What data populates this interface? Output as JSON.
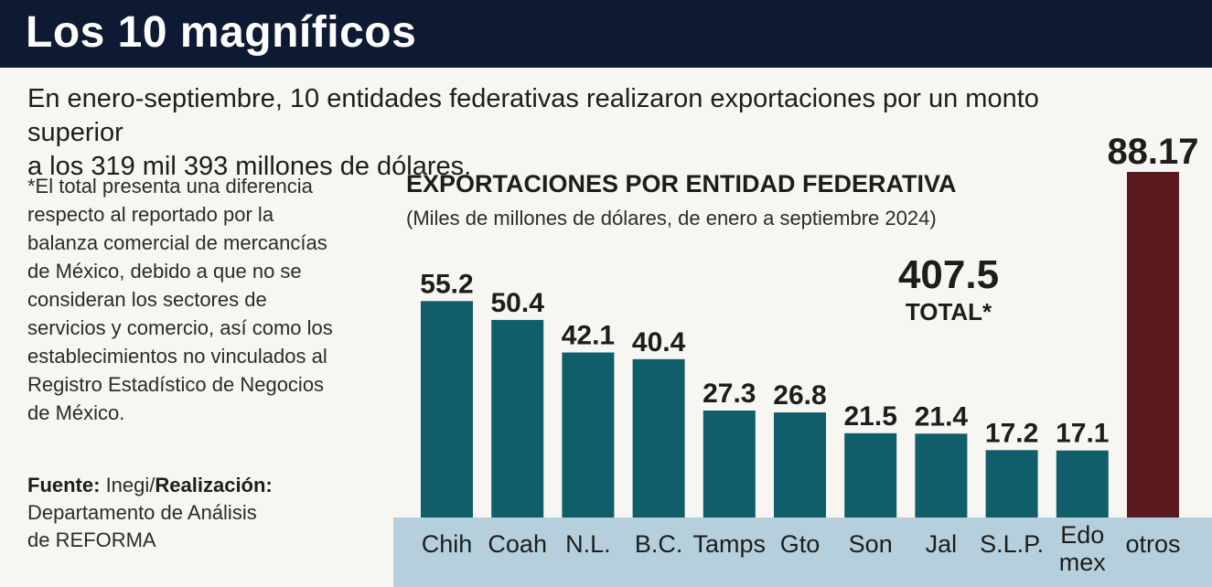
{
  "header": {
    "title": "Los 10 magníficos"
  },
  "intro": {
    "line1": "En enero-septiembre, 10 entidades federativas realizaron exportaciones por un monto superior",
    "line2": "a los 319 mil 393 millones de dólares."
  },
  "note": {
    "lines": [
      "*El total presenta una diferencia",
      "respecto al reportado por la",
      "balanza comercial de mercancías",
      "de México, debido a que no se",
      "consideran los sectores de",
      "servicios y comercio, así como los",
      "establecimientos no vinculados al",
      "Registro Estadístico de Negocios",
      "de México."
    ]
  },
  "source": {
    "label_fuente": "Fuente:",
    "fuente_value": " Inegi/",
    "label_realizacion": "Realización:",
    "line2": "Departamento de Análisis",
    "line3": "de REFORMA"
  },
  "total": {
    "value": "407.5",
    "label": "TOTAL*"
  },
  "colors": {
    "bar_main": "#0f5e6a",
    "bar_other": "#5a1a1d",
    "axis_band": "#b5d0dc",
    "header_bg": "#0e1a33"
  },
  "chart_data": {
    "type": "bar",
    "title": "EXPORTACIONES POR ENTIDAD FEDERATIVA",
    "subtitle": "(Miles de millones de dólares, de enero a septiembre 2024)",
    "categories": [
      "Chih",
      "Coah",
      "N.L.",
      "B.C.",
      "Tamps",
      "Gto",
      "Son",
      "Jal",
      "S.L.P.",
      "Edo mex",
      "otros"
    ],
    "category_lines": [
      [
        "Chih"
      ],
      [
        "Coah"
      ],
      [
        "N.L."
      ],
      [
        "B.C."
      ],
      [
        "Tamps"
      ],
      [
        "Gto"
      ],
      [
        "Son"
      ],
      [
        "Jal"
      ],
      [
        "S.L.P."
      ],
      [
        "Edo",
        "mex"
      ],
      [
        "otros"
      ]
    ],
    "values": [
      55.2,
      50.4,
      42.1,
      40.4,
      27.3,
      26.8,
      21.5,
      21.4,
      17.2,
      17.1,
      88.17
    ],
    "value_labels": [
      "55.2",
      "50.4",
      "42.1",
      "40.4",
      "27.3",
      "26.8",
      "21.5",
      "21.4",
      "17.2",
      "17.1",
      "88.17"
    ],
    "xlabel": "",
    "ylabel": "",
    "ylim": [
      0,
      88.17
    ],
    "grid": false,
    "legend": "none"
  }
}
